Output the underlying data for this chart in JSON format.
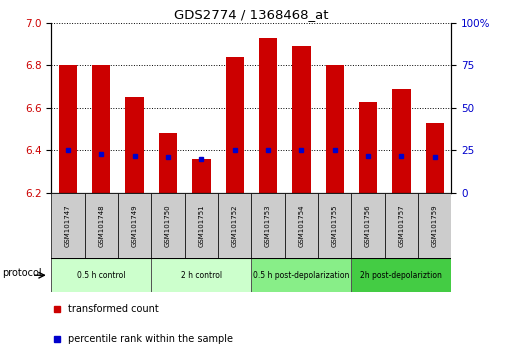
{
  "title": "GDS2774 / 1368468_at",
  "samples": [
    "GSM101747",
    "GSM101748",
    "GSM101749",
    "GSM101750",
    "GSM101751",
    "GSM101752",
    "GSM101753",
    "GSM101754",
    "GSM101755",
    "GSM101756",
    "GSM101757",
    "GSM101759"
  ],
  "transformed_count": [
    6.8,
    6.8,
    6.65,
    6.48,
    6.36,
    6.84,
    6.93,
    6.89,
    6.8,
    6.63,
    6.69,
    6.53
  ],
  "percentile_rank": [
    25,
    23,
    22,
    21,
    20,
    25,
    25,
    25,
    25,
    22,
    22,
    21
  ],
  "ylim_left": [
    6.2,
    7.0
  ],
  "ylim_right": [
    0,
    100
  ],
  "yticks_left": [
    6.2,
    6.4,
    6.6,
    6.8,
    7.0
  ],
  "yticks_right": [
    0,
    25,
    50,
    75,
    100
  ],
  "bar_color": "#cc0000",
  "percentile_color": "#0000cc",
  "bar_width": 0.55,
  "protocols": [
    {
      "label": "0.5 h control",
      "start": 0,
      "end": 2,
      "color": "#ccffcc"
    },
    {
      "label": "2 h control",
      "start": 3,
      "end": 5,
      "color": "#ccffcc"
    },
    {
      "label": "0.5 h post-depolarization",
      "start": 6,
      "end": 8,
      "color": "#88ee88"
    },
    {
      "label": "2h post-depolariztion",
      "start": 9,
      "end": 11,
      "color": "#44cc44"
    }
  ],
  "legend_bar_label": "transformed count",
  "legend_pct_label": "percentile rank within the sample",
  "protocol_label": "protocol",
  "tick_label_color_left": "#cc0000",
  "tick_label_color_right": "#0000cc",
  "sample_box_color": "#cccccc",
  "plot_bg": "#ffffff"
}
